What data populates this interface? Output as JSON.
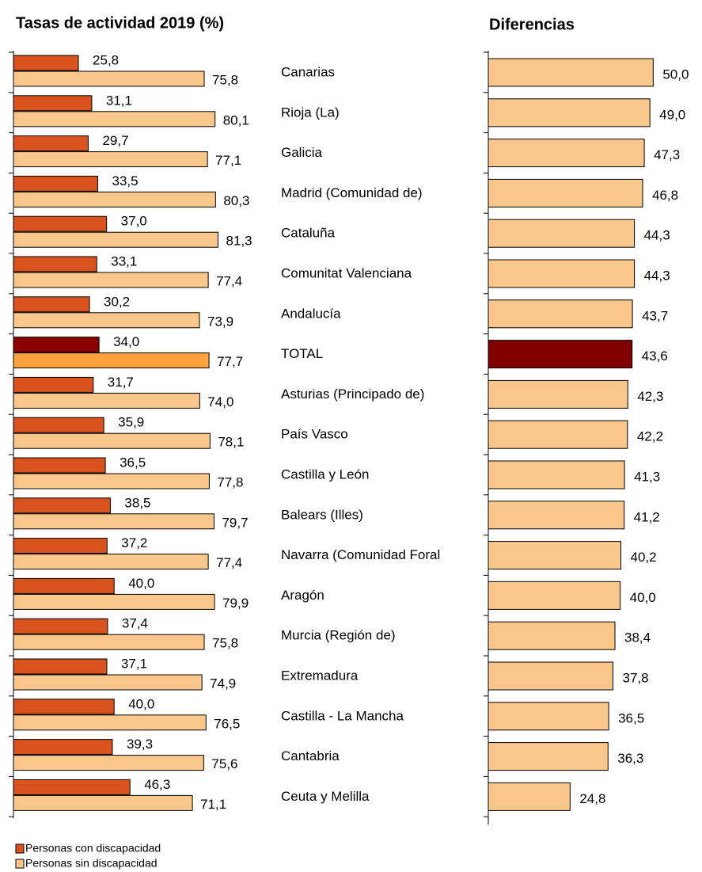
{
  "chart_data": [
    {
      "type": "barh",
      "title": "Tasas de actividad  2019 (%)",
      "categories": [
        "Canarias",
        "Rioja (La)",
        "Galicia",
        "Madrid (Comunidad de)",
        "Cataluña",
        "Comunitat Valenciana",
        "Andalucía",
        "TOTAL",
        "Asturias (Principado de)",
        "País Vasco",
        "Castilla y León",
        "Balears (Illes)",
        "Navarra (Comunidad Foral",
        "Aragón",
        "Murcia (Región de)",
        "Extremadura",
        "Castilla - La Mancha",
        "Cantabria",
        "Ceuta y Melilla"
      ],
      "series": [
        {
          "name": "Personas con discapacidad",
          "color": "#d9531e",
          "colors": [
            "#d9531e",
            "#d9531e",
            "#d9531e",
            "#d9531e",
            "#d9531e",
            "#d9531e",
            "#d9531e",
            "#8b0000",
            "#d9531e",
            "#d9531e",
            "#d9531e",
            "#d9531e",
            "#d9531e",
            "#d9531e",
            "#d9531e",
            "#d9531e",
            "#d9531e",
            "#d9531e",
            "#d9531e"
          ],
          "values": [
            25.8,
            31.1,
            29.7,
            33.5,
            37.0,
            33.1,
            30.2,
            34.0,
            31.7,
            35.9,
            36.5,
            38.5,
            37.2,
            40.0,
            37.4,
            37.1,
            40.0,
            39.3,
            46.3
          ],
          "value_labels": [
            "25,8",
            "31,1",
            "29,7",
            "33,5",
            "37,0",
            "33,1",
            "30,2",
            "34,0",
            "31,7",
            "35,9",
            "36,5",
            "38,5",
            "37,2",
            "40,0",
            "37,4",
            "37,1",
            "40,0",
            "39,3",
            "46,3"
          ]
        },
        {
          "name": "Personas sin discapacidad",
          "color": "#f9c78b",
          "colors": [
            "#f9c78b",
            "#f9c78b",
            "#f9c78b",
            "#f9c78b",
            "#f9c78b",
            "#f9c78b",
            "#f9c78b",
            "#fba23c",
            "#f9c78b",
            "#f9c78b",
            "#f9c78b",
            "#f9c78b",
            "#f9c78b",
            "#f9c78b",
            "#f9c78b",
            "#f9c78b",
            "#f9c78b",
            "#f9c78b",
            "#f9c78b"
          ],
          "values": [
            75.8,
            80.1,
            77.1,
            80.3,
            81.3,
            77.4,
            73.9,
            77.7,
            74.0,
            78.1,
            77.8,
            79.7,
            77.4,
            79.9,
            75.8,
            74.9,
            76.5,
            75.6,
            71.1
          ],
          "value_labels": [
            "75,8",
            "80,1",
            "77,1",
            "80,3",
            "81,3",
            "77,4",
            "73,9",
            "77,7",
            "74,0",
            "78,1",
            "77,8",
            "79,7",
            "77,4",
            "79,9",
            "75,8",
            "74,9",
            "76,5",
            "75,6",
            "71,1"
          ]
        }
      ],
      "xlim": [
        0,
        100
      ],
      "legend": "bottom-left"
    },
    {
      "type": "barh",
      "title": "Diferencias",
      "color": "#f9c78b",
      "colors": [
        "#f9c78b",
        "#f9c78b",
        "#f9c78b",
        "#f9c78b",
        "#f9c78b",
        "#f9c78b",
        "#f9c78b",
        "#800000",
        "#f9c78b",
        "#f9c78b",
        "#f9c78b",
        "#f9c78b",
        "#f9c78b",
        "#f9c78b",
        "#f9c78b",
        "#f9c78b",
        "#f9c78b",
        "#f9c78b",
        "#f9c78b"
      ],
      "values": [
        50.0,
        49.0,
        47.3,
        46.8,
        44.3,
        44.3,
        43.7,
        43.6,
        42.3,
        42.2,
        41.3,
        41.2,
        40.2,
        40.0,
        38.4,
        37.8,
        36.5,
        36.3,
        24.8
      ],
      "value_labels": [
        "50,0",
        "49,0",
        "47,3",
        "46,8",
        "44,3",
        "44,3",
        "43,7",
        "43,6",
        "42,3",
        "42,2",
        "41,3",
        "41,2",
        "40,2",
        "40,0",
        "38,4",
        "37,8",
        "36,5",
        "36,3",
        "24,8"
      ],
      "xlim": [
        0,
        60
      ]
    }
  ]
}
